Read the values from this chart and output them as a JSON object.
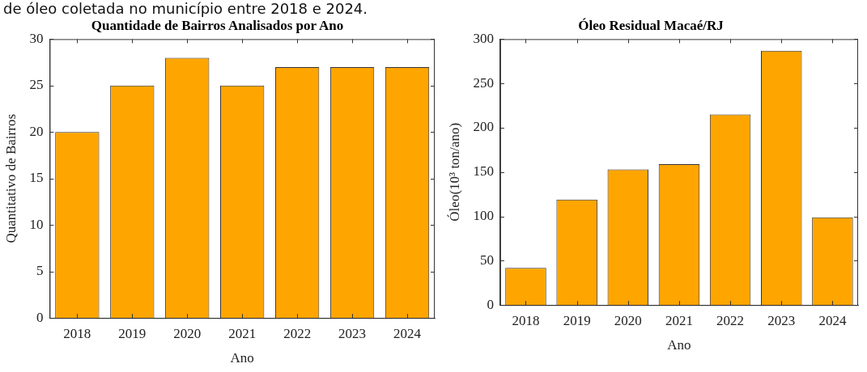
{
  "chart_data": [
    {
      "type": "bar",
      "title": "Quantidade de Bairros Analisados por Ano",
      "xlabel": "Ano",
      "ylabel": "Quantitativo de Bairros",
      "annotations": [
        "de óleo coletada no município entre 2018 e 2024."
      ],
      "categories": [
        "2018",
        "2019",
        "2020",
        "2021",
        "2022",
        "2023",
        "2024"
      ],
      "series": [
        {
          "color": "#ffa500",
          "values": [
            20,
            25,
            28,
            25,
            27,
            27,
            27
          ]
        }
      ],
      "ylim": [
        0,
        30
      ],
      "yticks": [
        0,
        5,
        10,
        15,
        20,
        25,
        30
      ],
      "grid": false,
      "legend": false
    },
    {
      "type": "bar",
      "title": "Óleo Residual Macaé/RJ",
      "xlabel": "Ano",
      "ylabel": "Óleo(10³ ton/ano)",
      "categories": [
        "2018",
        "2019",
        "2020",
        "2021",
        "2022",
        "2023",
        "2024"
      ],
      "series": [
        {
          "color": "#ffa500",
          "values": [
            42,
            119,
            153,
            159,
            215,
            287,
            99
          ]
        }
      ],
      "ylim": [
        0,
        300
      ],
      "yticks": [
        0,
        50,
        100,
        150,
        200,
        250,
        300
      ],
      "grid": false,
      "legend": false
    }
  ]
}
